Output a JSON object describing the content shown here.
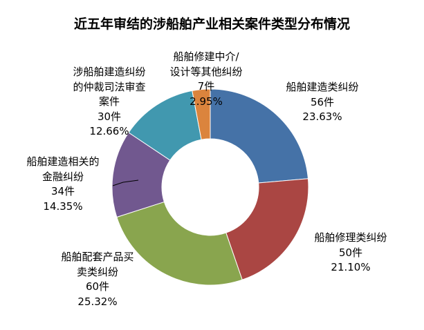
{
  "chart_data": {
    "type": "donut",
    "title": "近五年审结的涉船舶产业相关案件类型分布情况",
    "unit": "件",
    "slices": [
      {
        "label": [
          "船舶建造类纠纷"
        ],
        "value": 56,
        "percent": "23.63%",
        "color": "#4572A7"
      },
      {
        "label": [
          "船舶修理类纠纷"
        ],
        "value": 50,
        "percent": "21.10%",
        "color": "#AA4643"
      },
      {
        "label": [
          "船舶配套产品买",
          "卖类纠纷"
        ],
        "value": 60,
        "percent": "25.32%",
        "color": "#89A54E"
      },
      {
        "label": [
          "船舶建造相关的",
          "金融纠纷"
        ],
        "value": 34,
        "percent": "14.35%",
        "color": "#71588F"
      },
      {
        "label": [
          "涉船舶建造纠纷",
          "的仲裁司法审查",
          "案件"
        ],
        "value": 30,
        "percent": "12.66%",
        "color": "#4198AF"
      },
      {
        "label": [
          "船舶修建中介/",
          "设计等其他纠纷"
        ],
        "value": 7,
        "percent": "2.95%",
        "color": "#DB843D"
      }
    ],
    "legend": "none"
  }
}
